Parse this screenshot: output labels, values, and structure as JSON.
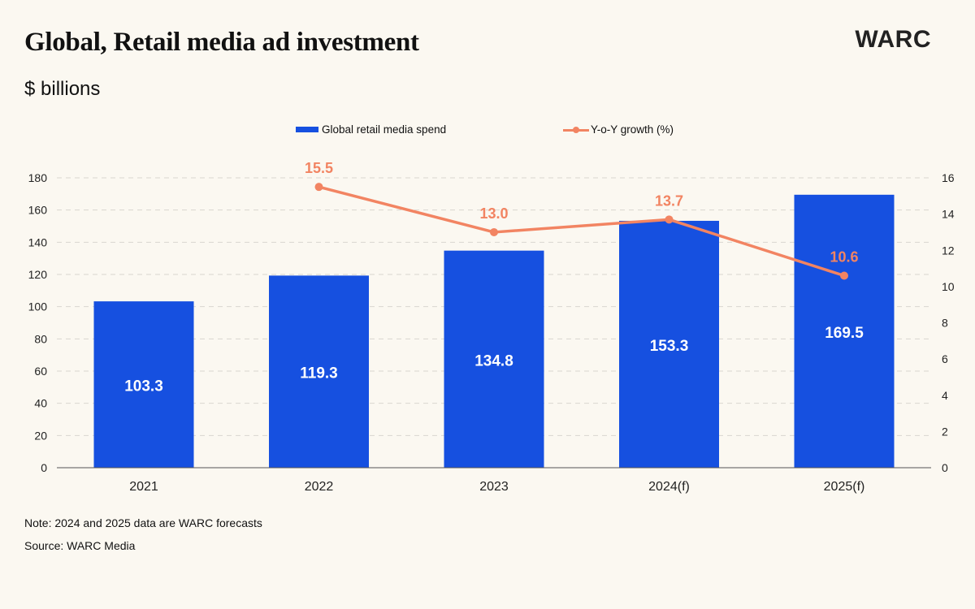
{
  "title": "Global, Retail media ad investment",
  "subtitle": "$ billions",
  "logo_text": "WARC",
  "note": "Note: 2024 and 2025 data are WARC forecasts",
  "source": "Source: WARC Media",
  "colors": {
    "bar": "#1650e0",
    "line": "#f28462",
    "background": "#fbf8f1"
  },
  "chart_data": {
    "type": "bar",
    "categories": [
      "2021",
      "2022",
      "2023",
      "2024(f)",
      "2025(f)"
    ],
    "series": [
      {
        "name": "Global retail media spend",
        "type": "bar",
        "axis": "left",
        "values": [
          103.3,
          119.3,
          134.8,
          153.3,
          169.5
        ],
        "labels": [
          "103.3",
          "119.3",
          "134.8",
          "153.3",
          "169.5"
        ]
      },
      {
        "name": "Y-o-Y growth (%)",
        "type": "line",
        "axis": "right",
        "values": [
          null,
          15.5,
          13.0,
          13.7,
          10.6
        ],
        "labels": [
          "",
          "15.5",
          "13.0",
          "13.7",
          "10.6"
        ]
      }
    ],
    "y_left": {
      "ylim": [
        0,
        180
      ],
      "ticks": [
        0,
        20,
        40,
        60,
        80,
        100,
        120,
        140,
        160,
        180
      ]
    },
    "y_right": {
      "ylim": [
        0,
        16
      ],
      "ticks": [
        0,
        2,
        4,
        6,
        8,
        10,
        12,
        14,
        16
      ]
    },
    "grid": true,
    "legend_position": "top"
  }
}
